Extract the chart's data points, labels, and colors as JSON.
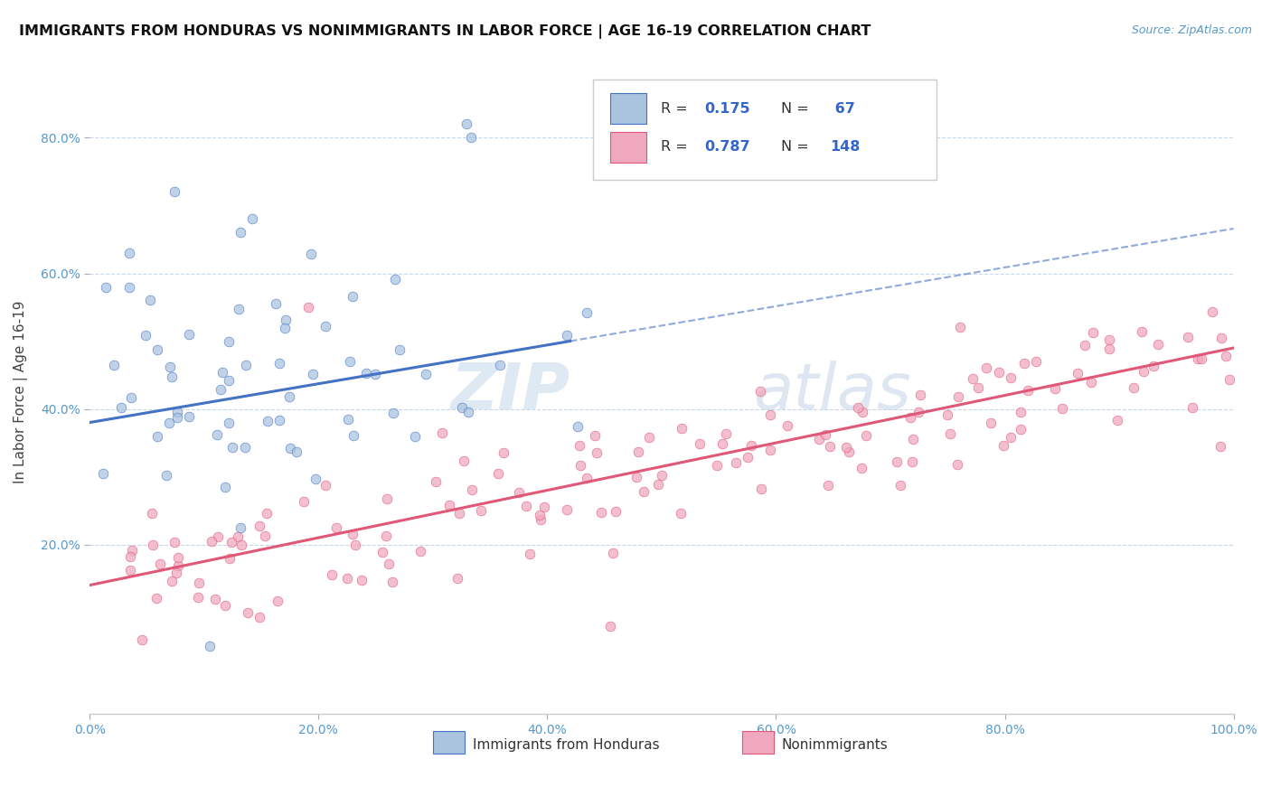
{
  "title": "IMMIGRANTS FROM HONDURAS VS NONIMMIGRANTS IN LABOR FORCE | AGE 16-19 CORRELATION CHART",
  "source": "Source: ZipAtlas.com",
  "ylabel": "In Labor Force | Age 16-19",
  "xlim": [
    0.0,
    1.0
  ],
  "ylim": [
    -0.05,
    0.9
  ],
  "x_ticks": [
    0.0,
    0.2,
    0.4,
    0.6,
    0.8,
    1.0
  ],
  "x_tick_labels": [
    "0.0%",
    "20.0%",
    "40.0%",
    "60.0%",
    "80.0%",
    "100.0%"
  ],
  "y_ticks": [
    0.2,
    0.4,
    0.6,
    0.8
  ],
  "y_tick_labels": [
    "20.0%",
    "40.0%",
    "60.0%",
    "80.0%"
  ],
  "legend_label_bottom1": "Immigrants from Honduras",
  "legend_label_bottom2": "Nonimmigrants",
  "color_blue": "#aac4e0",
  "color_pink": "#f0a8be",
  "line_blue": "#4472c4",
  "line_pink": "#e05878",
  "watermark_zip": "ZIP",
  "watermark_atlas": "atlas"
}
